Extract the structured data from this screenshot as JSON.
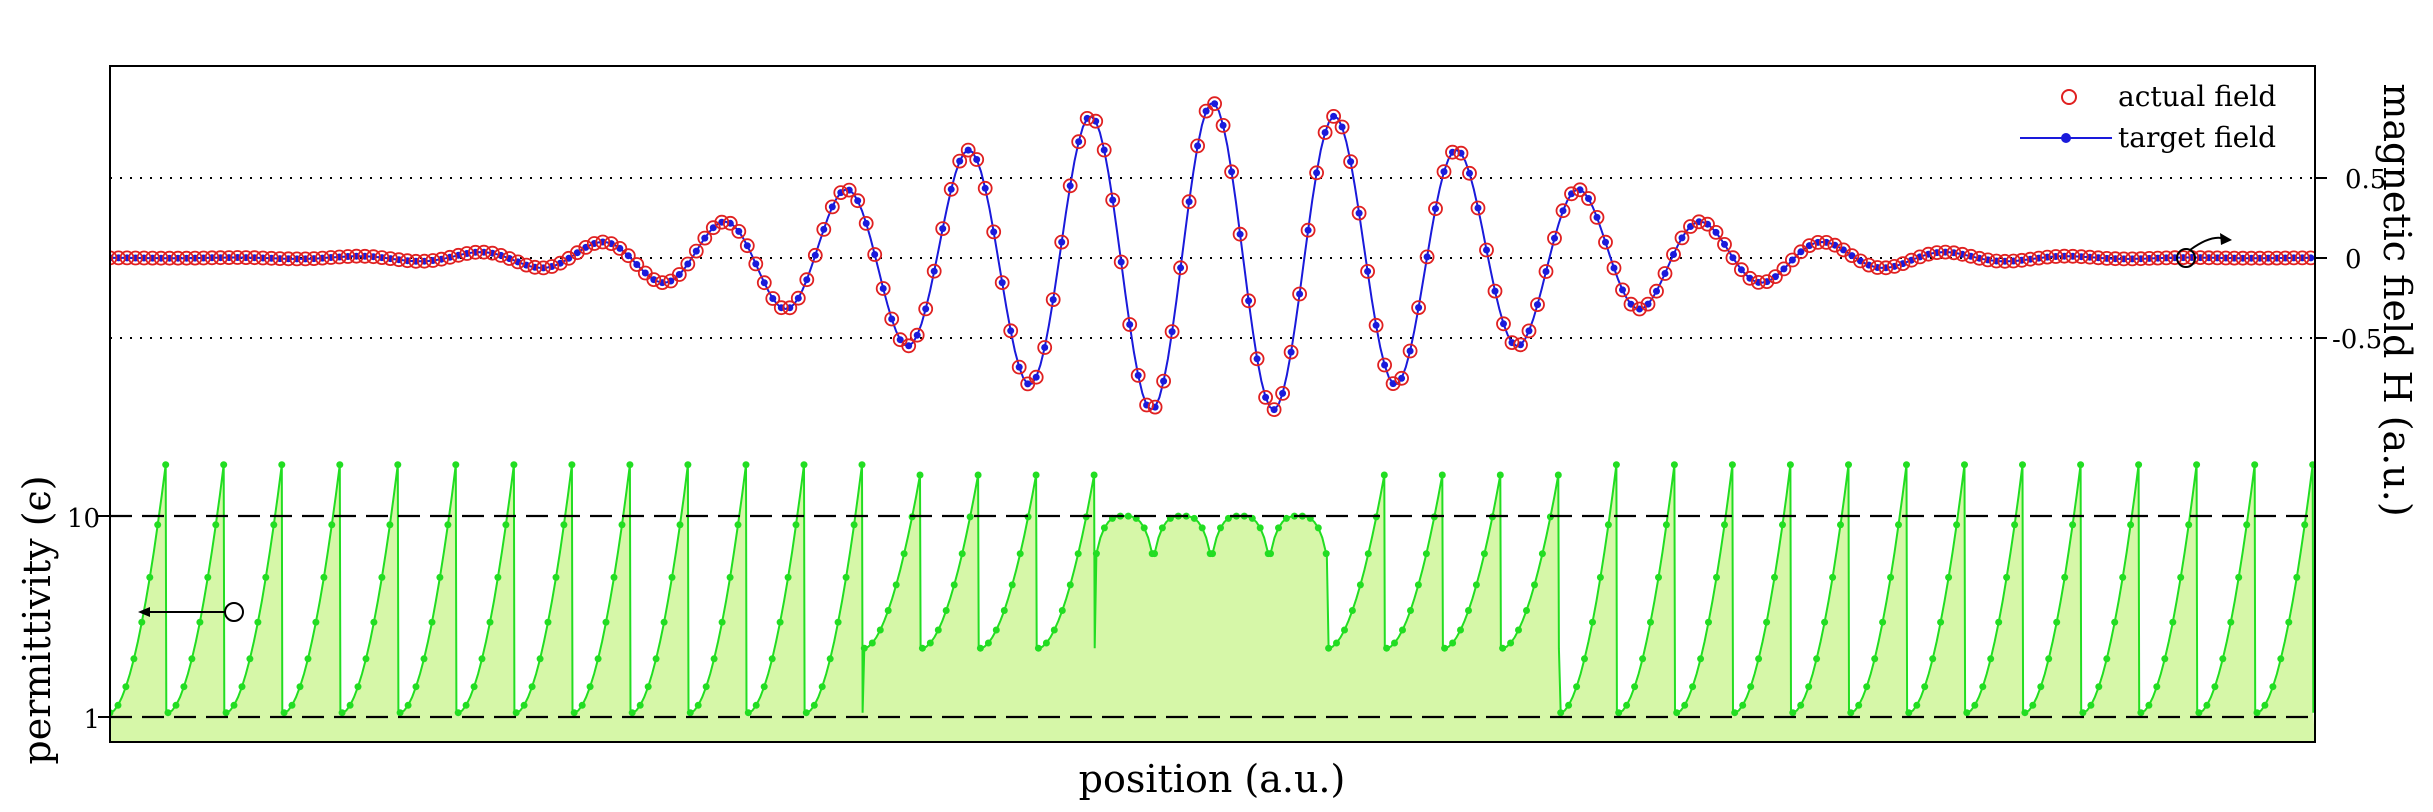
{
  "chart_data": {
    "type": "line",
    "xlabel": "position (a.u.)",
    "ylabel_left": "permittivity (ϵ)",
    "ylabel_right": "magnetic field H (a.u.)",
    "left_axis": {
      "ticks": [
        1,
        10
      ],
      "tick_labels": [
        "1",
        "10"
      ],
      "scale": "log"
    },
    "right_axis": {
      "ticks": [
        0.5,
        0,
        -0.5
      ],
      "tick_labels": [
        "0.5",
        "0",
        "-0.5"
      ],
      "range": [
        -1.0,
        1.0
      ]
    },
    "reference_lines": {
      "dotted": [
        0.5,
        0,
        -0.5
      ],
      "dashed": [
        10,
        1
      ]
    },
    "legend": {
      "position": "top-right",
      "entries": [
        {
          "label": "actual field",
          "marker": "open-circle",
          "color": "#e02020"
        },
        {
          "label": "target field",
          "marker": "dot-line",
          "color": "#1a1adb"
        }
      ]
    },
    "field": {
      "description_fields_in_axis_units": true,
      "envelope_amplitude": 0.97,
      "wave_periods": 18,
      "envelope_width_fraction": 0.13
    },
    "permittivity": {
      "cells": 38,
      "min": 1,
      "max": 18
    },
    "colors": {
      "permittivity_line": "#22dd22",
      "permittivity_fill": "#d6f7a8",
      "actual": "#e02020",
      "target": "#1a1adb"
    }
  }
}
